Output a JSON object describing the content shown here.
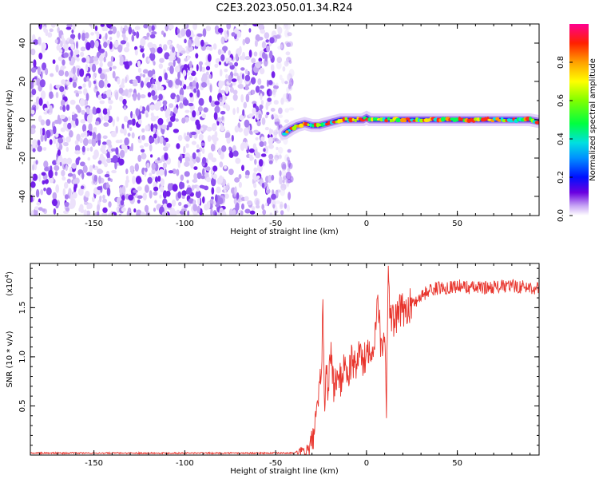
{
  "title": "C2E3.2023.050.01.34.R24",
  "colors": {
    "spectrum_dot": "#7a18ea",
    "snr_line": "#e8352d",
    "axis": "#000000"
  },
  "chart_data": [
    {
      "type": "heatmap",
      "xlabel": "Height of straight line (km)",
      "ylabel": "Frequency (Hz)",
      "xlim": [
        -185,
        95
      ],
      "ylim": [
        -50,
        50
      ],
      "xticks": [
        -150,
        -100,
        -50,
        0,
        50
      ],
      "yticks": [
        -40,
        -20,
        0,
        20,
        40
      ],
      "noise_region_x": [
        -185,
        -45
      ],
      "signal_track": {
        "x": [
          -45,
          -42,
          -38,
          -34,
          -30,
          -26,
          -22,
          -18,
          -14,
          -10,
          -6,
          -2,
          0,
          2,
          6,
          10,
          15,
          20,
          25,
          30,
          35,
          40,
          45,
          50,
          55,
          60,
          65,
          70,
          75,
          80,
          85,
          90,
          95
        ],
        "y": [
          -7,
          -5,
          -3,
          -2,
          -3,
          -3,
          -2,
          -1,
          0,
          0,
          0,
          0,
          1,
          0,
          0,
          0,
          0,
          0,
          0,
          0,
          0,
          0,
          0,
          0,
          0,
          0,
          0,
          0,
          0,
          0,
          0,
          0,
          -1
        ]
      },
      "colorbar": {
        "label": "Normalized spectral amplitude",
        "range": [
          0,
          1
        ],
        "ticks": [
          "0.0",
          "0.2",
          "0.4",
          "0.6",
          "0.8"
        ],
        "tick_values": [
          0.0,
          0.2,
          0.4,
          0.6,
          0.8
        ]
      }
    },
    {
      "type": "line",
      "xlabel": "Height of straight line (km)",
      "ylabel": "SNR (10 * v/v)",
      "scale_label": "(x10",
      "scale_exp": "4",
      "scale_close": ")",
      "xlim": [
        -185,
        95
      ],
      "ylim": [
        0,
        1.95
      ],
      "xticks": [
        -150,
        -100,
        -50,
        0,
        50
      ],
      "yticks": [
        "0.5",
        "1.0",
        "1.5"
      ],
      "ytick_values": [
        0.5,
        1.0,
        1.5
      ],
      "series": [
        {
          "x": [
            -185,
            -40,
            -32,
            -29,
            -27,
            -25,
            -24,
            -23,
            -22,
            -21,
            -20,
            -18,
            -16,
            -14,
            -12,
            -10,
            -8,
            -6,
            -4,
            -2,
            0,
            2,
            4,
            6,
            8,
            10,
            11,
            12,
            13,
            15,
            18,
            22,
            26,
            30,
            35,
            40,
            50,
            60,
            70,
            80,
            95
          ],
          "y": [
            0.02,
            0.02,
            0.05,
            0.2,
            0.45,
            0.8,
            1.45,
            0.5,
            0.9,
            0.6,
            1.1,
            0.7,
            0.8,
            0.75,
            0.95,
            0.8,
            1.0,
            0.85,
            1.1,
            0.9,
            1.05,
            1.15,
            1.0,
            1.7,
            1.1,
            1.25,
            0.55,
            1.95,
            1.4,
            1.35,
            1.45,
            1.5,
            1.55,
            1.62,
            1.68,
            1.7,
            1.72,
            1.7,
            1.71,
            1.72,
            1.7
          ]
        }
      ]
    }
  ]
}
